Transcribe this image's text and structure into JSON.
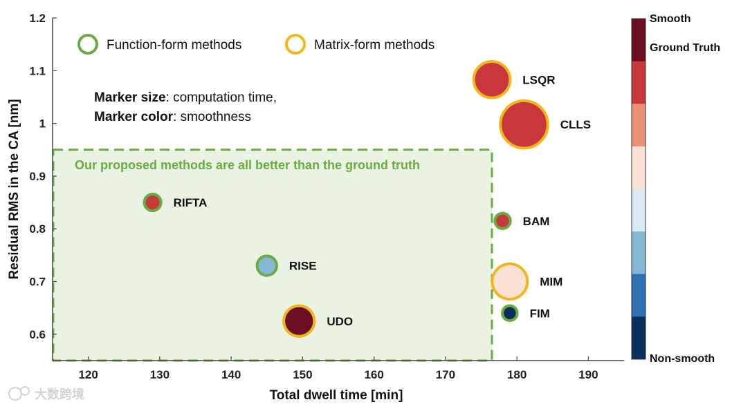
{
  "chart_data": {
    "type": "scatter",
    "xlabel": "Total dwell time [min]",
    "ylabel": "Residual RMS in the CA [nm]",
    "xlim": [
      115,
      195
    ],
    "ylim": [
      0.55,
      1.2
    ],
    "xticks": [
      120,
      130,
      140,
      150,
      160,
      170,
      180,
      190
    ],
    "yticks": [
      0.6,
      0.7,
      0.8,
      0.9,
      1.0,
      1.1,
      1.2
    ],
    "ytick_labels": [
      "0.6",
      "0.7",
      "0.8",
      "0.9",
      "1",
      "1.1",
      "1.2"
    ],
    "legend": [
      {
        "label": "Function-form methods",
        "edge_color": "#6aab45"
      },
      {
        "label": "Matrix-form methods",
        "edge_color": "#f2b51b"
      }
    ],
    "note": {
      "size_bold": "Marker size",
      "size_text": ": computation time,",
      "color_bold": "Marker color",
      "color_text": ":  smoothness"
    },
    "region": {
      "x_range": [
        115,
        176.5
      ],
      "y_range": [
        0.55,
        0.95
      ],
      "label": "Our proposed methods are all better than the ground truth",
      "color": "#6aab45"
    },
    "points": [
      {
        "label": "RIFTA",
        "x": 129,
        "y": 0.85,
        "family": "Function-form",
        "color": "#c8373b",
        "size": 1.2
      },
      {
        "label": "RISE",
        "x": 145,
        "y": 0.73,
        "family": "Function-form",
        "color": "#86b8d6",
        "size": 1.7
      },
      {
        "label": "UDO",
        "x": 149.5,
        "y": 0.625,
        "family": "Matrix-form",
        "color": "#6b0e22",
        "size": 3.6
      },
      {
        "label": "LSQR",
        "x": 176.5,
        "y": 1.083,
        "family": "Matrix-form",
        "color": "#c8373b",
        "size": 4.6
      },
      {
        "label": "CLLS",
        "x": 181,
        "y": 0.998,
        "family": "Matrix-form",
        "color": "#c8373b",
        "size": 6.5
      },
      {
        "label": "BAM",
        "x": 178,
        "y": 0.815,
        "family": "Function-form",
        "color": "#c8373b",
        "size": 1.0
      },
      {
        "label": "MIM",
        "x": 179,
        "y": 0.7,
        "family": "Matrix-form",
        "color": "#fbe0d6",
        "size": 4.4
      },
      {
        "label": "FIM",
        "x": 179,
        "y": 0.64,
        "family": "Function-form",
        "color": "#0a2f5c",
        "size": 0.9
      }
    ],
    "colorbar": {
      "top_label": "Smooth",
      "reference_label": "Ground Truth",
      "bottom_label": "Non-smooth",
      "colors_top_to_bottom": [
        "#6b0e22",
        "#c8373b",
        "#eb9174",
        "#fbe0d6",
        "#d9e9f2",
        "#86b8d6",
        "#2f72b2",
        "#0a2f5c"
      ]
    }
  },
  "watermark": "大数跨境"
}
